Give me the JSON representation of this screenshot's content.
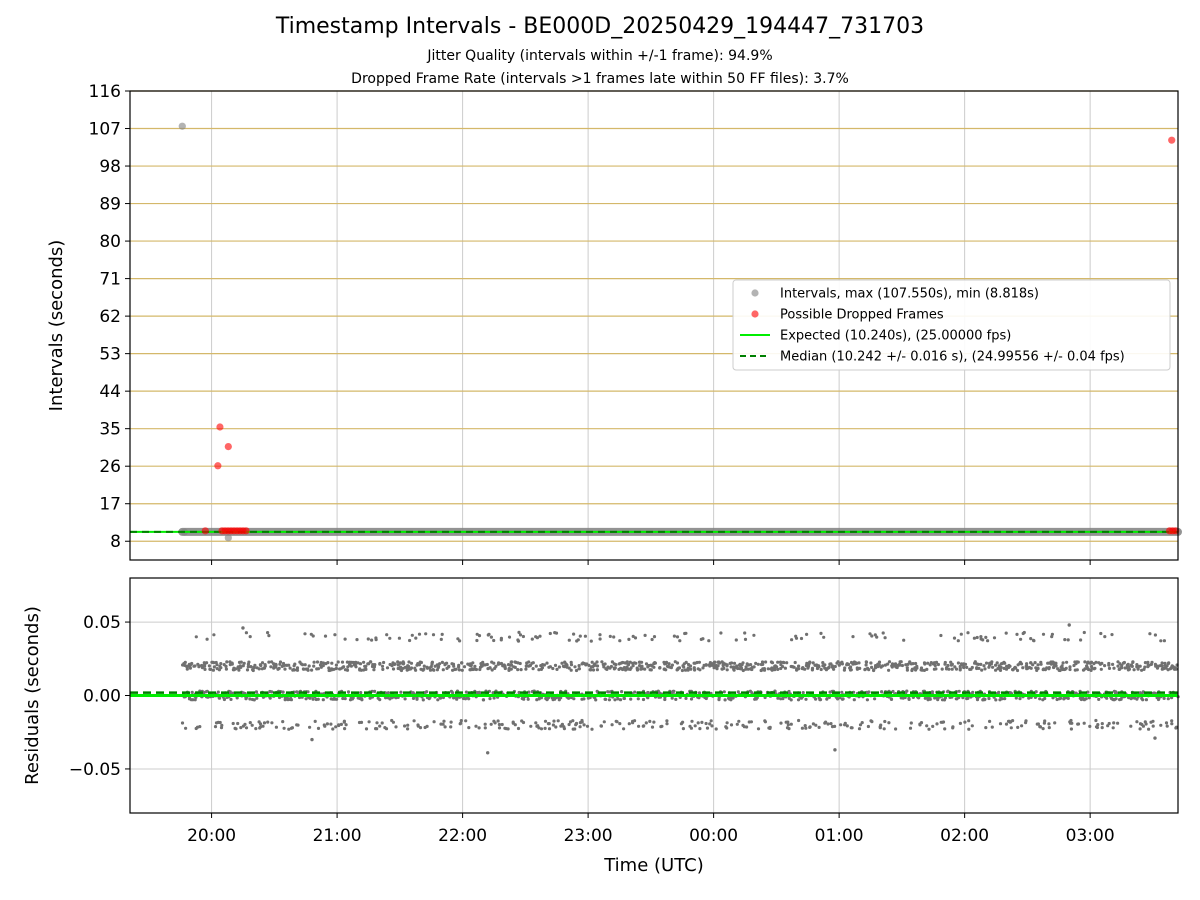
{
  "figure": {
    "title": "Timestamp Intervals - BE000D_20250429_194447_731703",
    "subtitle_1": "Jitter Quality (intervals within +/-1 frame): 94.9%",
    "subtitle_2": "Dropped Frame Rate (intervals >1 frames late within 50 FF files): 3.7%"
  },
  "colors": {
    "intervals": "#808080",
    "dropped": "#ff0000",
    "expected": "#00ee00",
    "median": "#008000",
    "hgrid_top": "#d4b86a",
    "grid": "#cccccc",
    "residuals": "#707070"
  },
  "chart_data": [
    {
      "type": "scatter",
      "xlabel": "",
      "ylabel": "Intervals (seconds)",
      "ylim": [
        3.5,
        116
      ],
      "x_range": [
        "19:21",
        "03:42"
      ],
      "y_ticks": [
        8,
        17,
        26,
        35,
        44,
        53,
        62,
        71,
        80,
        89,
        98,
        107,
        116
      ],
      "grid": "horizontal lines",
      "legend_position": "center-right",
      "legend": [
        "Intervals, max (107.550s), min (8.818s)",
        "Possible Dropped Frames",
        "Expected (10.240s), (25.00000 fps)",
        "Median (10.242 +/- 0.016 s), (24.99556 +/- 0.04 fps)"
      ],
      "series": [
        {
          "name": "Intervals, max (107.550s), min (8.818s)",
          "points": [
            {
              "x": "19:46",
              "y": 107.55
            },
            {
              "x": "19:47",
              "y": 10.2
            },
            {
              "x": "20:08",
              "y": 8.818
            }
          ],
          "band": {
            "x_start": "19:46",
            "x_end": "03:42",
            "y": 10.24
          }
        },
        {
          "name": "Possible Dropped Frames",
          "points": [
            {
              "x": "20:04",
              "y": 35.4
            },
            {
              "x": "20:08",
              "y": 30.7
            },
            {
              "x": "20:03",
              "y": 26.1
            },
            {
              "x": "19:57",
              "y": 10.5
            },
            {
              "x": "03:39",
              "y": 104.2
            }
          ],
          "clusters": [
            {
              "x_start": "20:05",
              "x_end": "20:17",
              "y": 10.5
            },
            {
              "x_start": "03:38",
              "x_end": "03:42",
              "y": 10.5
            }
          ]
        },
        {
          "name": "Expected (10.240s), (25.00000 fps)",
          "y": 10.24
        },
        {
          "name": "Median (10.242 +/- 0.016 s), (24.99556 +/- 0.04 fps)",
          "y": 10.242
        }
      ]
    },
    {
      "type": "scatter",
      "xlabel": "Time (UTC)",
      "ylabel": "Residuals (seconds)",
      "ylim": [
        -0.08,
        0.08
      ],
      "y_ticks": [
        0.05,
        0.0,
        -0.05
      ],
      "y_tick_labels": [
        "0.05",
        "0.00",
        "−0.05"
      ],
      "x_tick_labels": [
        "20:00",
        "21:00",
        "22:00",
        "23:00",
        "00:00",
        "01:00",
        "02:00",
        "03:00"
      ],
      "grid": "both",
      "series": [
        {
          "name": "",
          "x_range": [
            "19:46",
            "03:42"
          ],
          "value_bands": [
            -0.02,
            0.0,
            0.02,
            0.04
          ],
          "outliers": [
            {
              "x": "22:12",
              "y": -0.039
            },
            {
              "x": "00:58",
              "y": -0.037
            },
            {
              "x": "20:48",
              "y": -0.03
            },
            {
              "x": "03:31",
              "y": -0.029
            },
            {
              "x": "02:50",
              "y": 0.048
            },
            {
              "x": "20:15",
              "y": 0.046
            }
          ]
        },
        {
          "name": "",
          "type": "line",
          "y": 0.0
        },
        {
          "name": "",
          "type": "line",
          "style": "dashed",
          "y": 0.002
        }
      ]
    }
  ]
}
